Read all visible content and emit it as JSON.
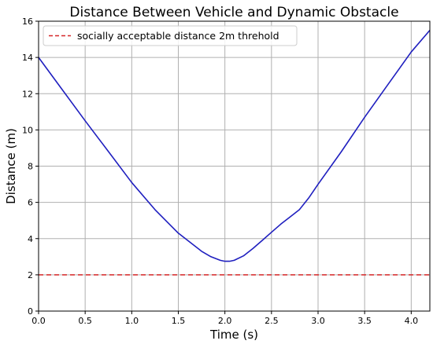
{
  "chart_data": {
    "type": "line",
    "title": "Distance Between Vehicle and Dynamic Obstacle",
    "xlabel": "Time (s)",
    "ylabel": "Distance (m)",
    "xlim": [
      0,
      4.2
    ],
    "ylim": [
      0,
      16
    ],
    "xticks": [
      "0.0",
      "0.5",
      "1.0",
      "1.5",
      "2.0",
      "2.5",
      "3.0",
      "3.5",
      "4.0"
    ],
    "yticks": [
      "0",
      "2",
      "4",
      "6",
      "8",
      "10",
      "12",
      "14",
      "16"
    ],
    "grid": true,
    "legend_position": "top-left",
    "series": [
      {
        "name": "",
        "color": "#1f1fbf",
        "style": "solid",
        "x": [
          0.0,
          0.25,
          0.5,
          0.75,
          1.0,
          1.25,
          1.5,
          1.75,
          1.85,
          1.95,
          2.0,
          2.05,
          2.1,
          2.2,
          2.3,
          2.4,
          2.5,
          2.6,
          2.7,
          2.8,
          2.9,
          3.0,
          3.25,
          3.5,
          3.75,
          4.0,
          4.2
        ],
        "y": [
          14.0,
          12.25,
          10.5,
          8.8,
          7.1,
          5.6,
          4.3,
          3.3,
          3.0,
          2.8,
          2.75,
          2.75,
          2.8,
          3.05,
          3.45,
          3.9,
          4.35,
          4.8,
          5.2,
          5.6,
          6.25,
          7.0,
          8.8,
          10.7,
          12.5,
          14.3,
          15.5
        ]
      },
      {
        "name": "socially acceptable distance 2m threhold",
        "color": "#d62728",
        "style": "dashed",
        "x": [
          0.0,
          4.2
        ],
        "y": [
          2.0,
          2.0
        ]
      }
    ]
  }
}
